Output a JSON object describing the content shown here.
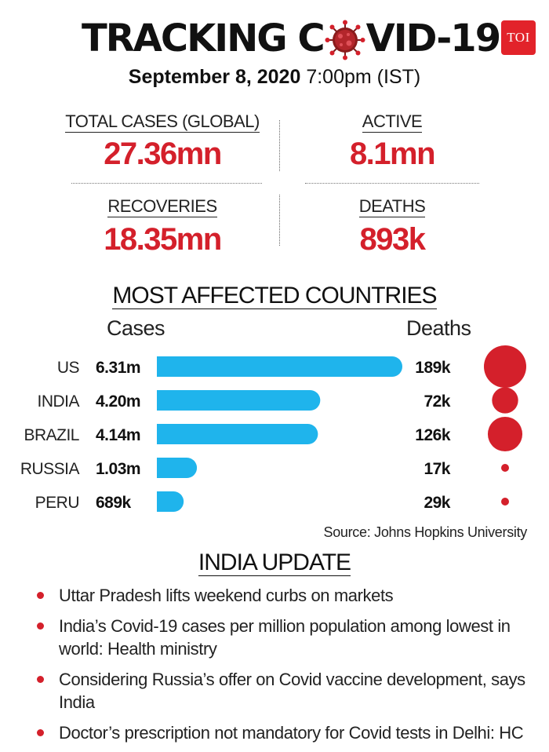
{
  "header": {
    "title_before": "TRACKING C",
    "title_after": "VID-19",
    "logo": "TOI",
    "date_bold": "September 8, 2020",
    "date_rest": " 7:00pm (IST)"
  },
  "stats": {
    "total": {
      "label": "TOTAL CASES (GLOBAL)",
      "value": "27.36mn"
    },
    "active": {
      "label": "ACTIVE",
      "value": "8.1mn"
    },
    "recoveries": {
      "label": "RECOVERIES",
      "value": "18.35mn"
    },
    "deaths": {
      "label": "DEATHS",
      "value": "893k"
    }
  },
  "countries_section": {
    "title": "MOST AFFECTED COUNTRIES",
    "cases_header": "Cases",
    "deaths_header": "Deaths",
    "source": "Source: Johns Hopkins University"
  },
  "chart_data": {
    "type": "bar",
    "title": "MOST AFFECTED COUNTRIES",
    "categories": [
      "US",
      "INDIA",
      "BRAZIL",
      "RUSSIA",
      "PERU"
    ],
    "series": [
      {
        "name": "Cases",
        "values": [
          6.31,
          4.2,
          4.14,
          1.03,
          0.689
        ],
        "unit": "millions",
        "labels": [
          "6.31m",
          "4.20m",
          "4.14m",
          "1.03m",
          "689k"
        ]
      },
      {
        "name": "Deaths",
        "values": [
          189,
          72,
          126,
          17,
          29
        ],
        "unit": "thousands",
        "labels": [
          "189k",
          "72k",
          "126k",
          "17k",
          "29k"
        ]
      }
    ],
    "xlabel": "Cases",
    "ylabel": "",
    "colors": {
      "cases_bar": "#1fb4ec",
      "deaths_bubble": "#d4202b"
    }
  },
  "india_update": {
    "title": "INDIA UPDATE",
    "items": [
      "Uttar Pradesh lifts weekend curbs on markets",
      "India’s Covid-19 cases per million population among lowest in world: Health ministry",
      "Considering Russia’s offer on Covid vaccine development, says India",
      "Doctor’s prescription not mandatory for Covid tests in Delhi: HC"
    ]
  }
}
